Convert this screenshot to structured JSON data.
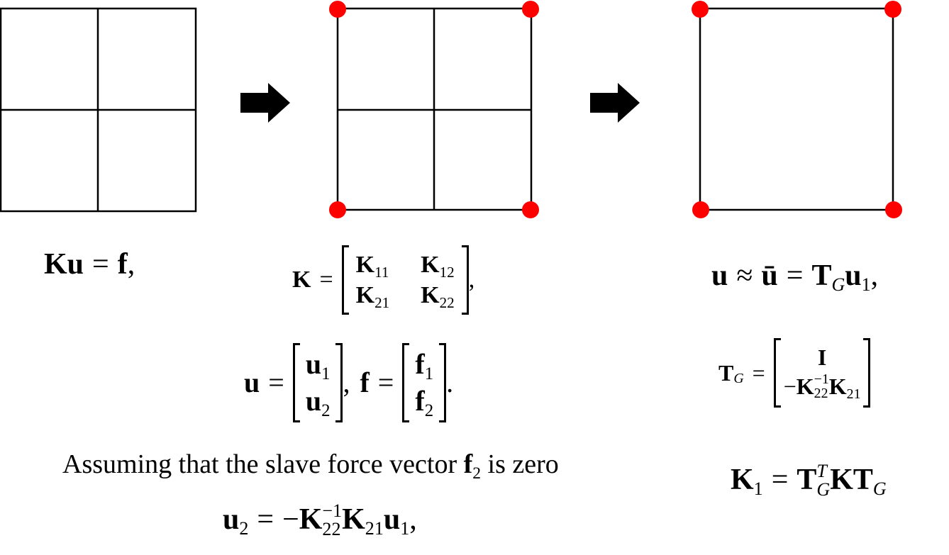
{
  "stages": [
    {
      "name": "fine-mesh",
      "mesh_divisions": 2,
      "master_nodes": false
    },
    {
      "name": "condensed-mesh",
      "mesh_divisions": 2,
      "master_nodes": true
    },
    {
      "name": "coarse-element",
      "mesh_divisions": 1,
      "master_nodes": true
    }
  ],
  "colors": {
    "line": "#000000",
    "node": "#ff0000",
    "arrow": "#000000"
  },
  "eq_system": {
    "lhs": "Ku",
    "eq": "=",
    "rhs": "f",
    "punct": ","
  },
  "eq_K": {
    "lhs": "K",
    "eq": "=",
    "m11": "K",
    "s11": "11",
    "m12": "K",
    "s12": "12",
    "m21": "K",
    "s21": "21",
    "m22": "K",
    "s22": "22",
    "punct": ","
  },
  "eq_uf": {
    "u": "u",
    "eq": "=",
    "u1": "u",
    "u1s": "1",
    "u2": "u",
    "u2s": "2",
    "sep": ",",
    "f": "f",
    "eq2": "=",
    "f1": "f",
    "f1s": "1",
    "f2": "f",
    "f2s": "2",
    "punct": "."
  },
  "assumption": {
    "pre": "Assuming that the slave force vector ",
    "vec": "f",
    "vec_sub": "2",
    "post": " is zero"
  },
  "eq_u2": {
    "lhs": "u",
    "lhs_sub": "2",
    "eq": "=",
    "minus": "−",
    "K": "K",
    "K_sup": "−1",
    "K_sub": "22",
    "K2": "K",
    "K2_sub": "21",
    "u": "u",
    "u_sub": "1",
    "punct": ","
  },
  "eq_approx": {
    "u": "u",
    "approx": "≈",
    "ubar": "ū",
    "eq": "=",
    "T": "T",
    "T_sub": "G",
    "u1": "u",
    "u1_sub": "1",
    "punct": ","
  },
  "eq_TG": {
    "T": "T",
    "T_sub": "G",
    "eq": "=",
    "top": "I",
    "minus": "−",
    "K": "K",
    "K_sup": "−1",
    "K_sub": "22",
    "K2": "K",
    "K2_sub": "21"
  },
  "eq_K1": {
    "K": "K",
    "K_sub": "1",
    "eq": "=",
    "T": "T",
    "T_sup": "T",
    "T_sub": "G",
    "K2": "K",
    "T2": "T",
    "T2_sub": "G"
  }
}
